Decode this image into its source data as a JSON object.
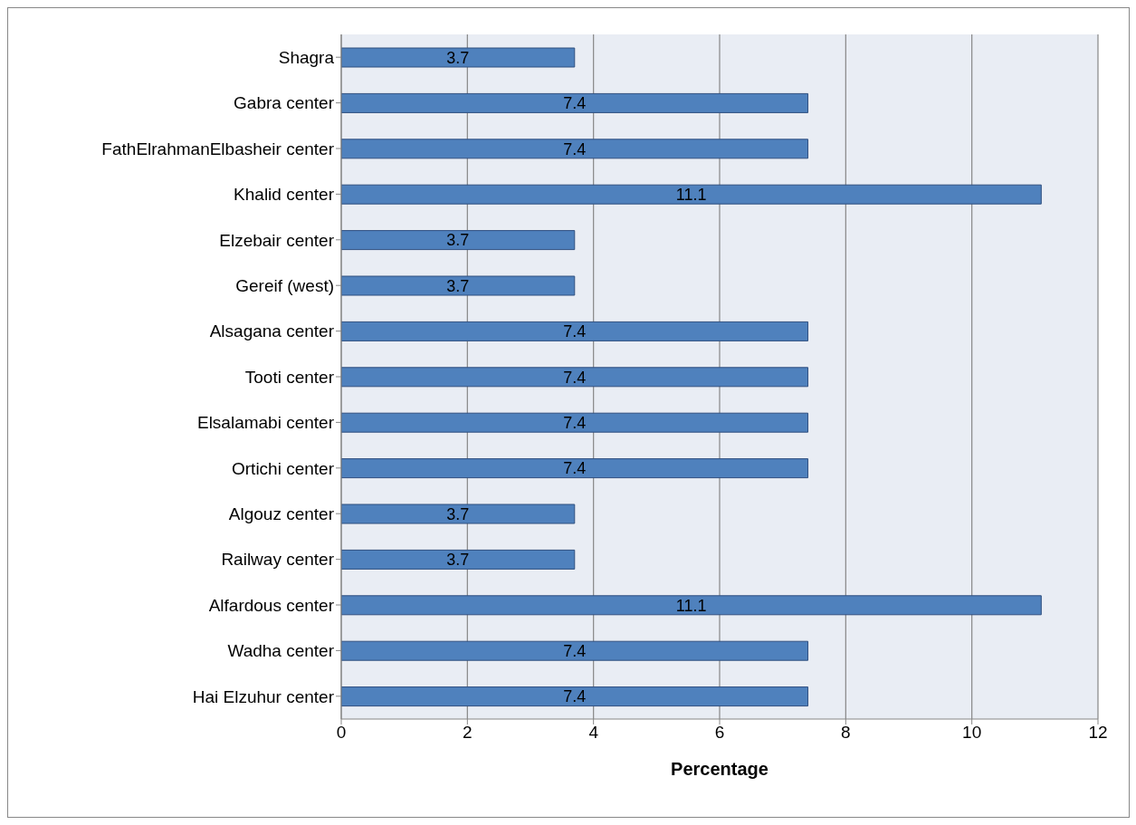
{
  "chart_data": {
    "type": "bar",
    "orientation": "horizontal",
    "xlabel": "Percentage",
    "categories": [
      "Shagra",
      "Gabra center",
      "FathElrahmanElbasheir center",
      "Khalid center",
      "Elzebair center",
      "Gereif (west)",
      "Alsagana center",
      "Tooti center",
      "Elsalamabi center",
      "Ortichi center",
      "Algouz center",
      "Railway center",
      "Alfardous center",
      "Wadha center",
      "Hai Elzuhur center"
    ],
    "values": [
      3.7,
      7.4,
      7.4,
      11.1,
      3.7,
      3.7,
      7.4,
      7.4,
      7.4,
      7.4,
      3.7,
      3.7,
      11.1,
      7.4,
      7.4
    ],
    "color": "#4f81bd",
    "xlim": [
      0,
      12
    ],
    "xticks": [
      0,
      2,
      4,
      6,
      8,
      10,
      12
    ],
    "grid": "x",
    "data_labels": true
  }
}
